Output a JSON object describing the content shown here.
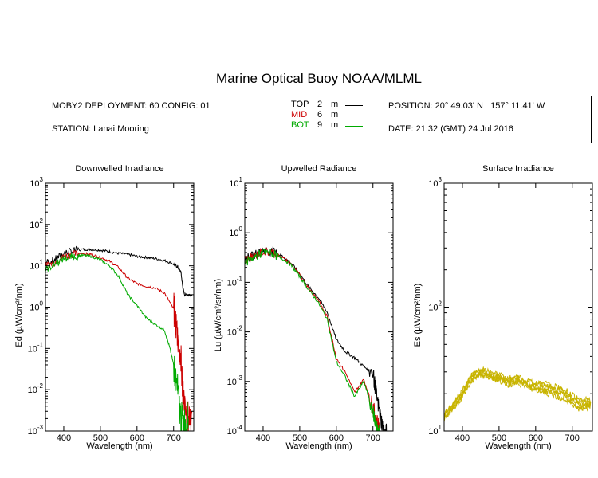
{
  "title": "Marine Optical Buoy NOAA/MLML",
  "header": {
    "deployment": "MOBY2 DEPLOYMENT: 60 CONFIG: 01",
    "station": "STATION: Lanai Mooring",
    "position": "POSITION: 20° 49.03' N   157° 11.41' W",
    "date": "DATE: 21:32 (GMT) 24 Jul 2016",
    "legend": [
      {
        "label": "TOP",
        "depth": "2",
        "unit": "m",
        "color": "#000000"
      },
      {
        "label": "MID",
        "depth": "6",
        "unit": "m",
        "color": "#cc0000"
      },
      {
        "label": "BOT",
        "depth": "9",
        "unit": "m",
        "color": "#00aa00"
      }
    ]
  },
  "chart_data": [
    {
      "type": "line",
      "title": "Downwelled Irradiance",
      "xlabel": "Wavelength (nm)",
      "ylabel": "Ed  (µW/cm²/nm)",
      "xlim": [
        350,
        755
      ],
      "ylim": [
        0.001,
        1000
      ],
      "yscale": "log",
      "xticks": [
        "400",
        "500",
        "600",
        "700"
      ],
      "yticks": [
        {
          "base": "10",
          "exp": "3"
        },
        {
          "base": "10",
          "exp": "2"
        },
        {
          "base": "10",
          "exp": "1"
        },
        {
          "base": "10",
          "exp": "0"
        },
        {
          "base": "10",
          "exp": "-1"
        },
        {
          "base": "10",
          "exp": "-2"
        },
        {
          "base": "10",
          "exp": "-3"
        }
      ],
      "series": [
        {
          "name": "TOP",
          "color": "#000000",
          "x": [
            350,
            375,
            400,
            425,
            450,
            475,
            500,
            525,
            550,
            575,
            600,
            625,
            650,
            675,
            700,
            710,
            720,
            725,
            730,
            740,
            750
          ],
          "y": [
            12,
            14,
            20,
            23,
            25,
            25,
            24,
            22,
            20,
            19,
            17,
            16,
            15,
            13.5,
            11,
            9.5,
            7,
            3,
            2,
            2,
            2
          ]
        },
        {
          "name": "MID",
          "color": "#cc0000",
          "x": [
            350,
            375,
            400,
            425,
            450,
            475,
            500,
            525,
            550,
            575,
            600,
            625,
            650,
            675,
            700,
            710,
            720,
            725,
            730,
            740,
            750
          ],
          "y": [
            10,
            12,
            17,
            19,
            20,
            19,
            16,
            13,
            9,
            5,
            3.7,
            3.2,
            2.9,
            2.2,
            0.9,
            0.25,
            0.05,
            0.01,
            0.003,
            0.002,
            0.003
          ]
        },
        {
          "name": "BOT",
          "color": "#00aa00",
          "x": [
            350,
            375,
            400,
            425,
            450,
            475,
            500,
            525,
            550,
            575,
            600,
            625,
            650,
            675,
            690,
            700,
            710,
            720,
            730,
            740
          ],
          "y": [
            8,
            11,
            15,
            17,
            18,
            17,
            14,
            10,
            5.5,
            2,
            1.1,
            0.55,
            0.38,
            0.28,
            0.1,
            0.04,
            0.01,
            0.002,
            0.0015,
            0.002
          ]
        }
      ]
    },
    {
      "type": "line",
      "title": "Upwelled Radiance",
      "xlabel": "Wavelength (nm)",
      "ylabel": "Lu  (µW/cm²/sr/nm)",
      "xlim": [
        350,
        755
      ],
      "ylim": [
        0.0001,
        10
      ],
      "yscale": "log",
      "xticks": [
        "400",
        "500",
        "600",
        "700"
      ],
      "yticks": [
        {
          "base": "10",
          "exp": "1"
        },
        {
          "base": "10",
          "exp": "0"
        },
        {
          "base": "10",
          "exp": "-1"
        },
        {
          "base": "10",
          "exp": "-2"
        },
        {
          "base": "10",
          "exp": "-3"
        },
        {
          "base": "10",
          "exp": "-4"
        }
      ],
      "series": [
        {
          "name": "TOP",
          "color": "#000000",
          "x": [
            350,
            375,
            400,
            425,
            450,
            475,
            500,
            525,
            550,
            575,
            600,
            625,
            650,
            675,
            700,
            710,
            720,
            730,
            740
          ],
          "y": [
            0.3,
            0.35,
            0.45,
            0.42,
            0.35,
            0.25,
            0.15,
            0.08,
            0.05,
            0.025,
            0.007,
            0.004,
            0.003,
            0.002,
            0.0015,
            0.0005,
            0.0002,
            0.0001,
            0.0001
          ]
        },
        {
          "name": "MID",
          "color": "#cc0000",
          "x": [
            350,
            375,
            400,
            425,
            450,
            475,
            500,
            525,
            550,
            575,
            600,
            625,
            650,
            675,
            700,
            710,
            720
          ],
          "y": [
            0.28,
            0.33,
            0.42,
            0.4,
            0.33,
            0.24,
            0.14,
            0.075,
            0.045,
            0.02,
            0.003,
            0.0015,
            0.0006,
            0.0011,
            0.0003,
            0.00015,
            0.0001
          ]
        },
        {
          "name": "BOT",
          "color": "#00aa00",
          "x": [
            350,
            375,
            400,
            425,
            450,
            475,
            500,
            525,
            550,
            575,
            600,
            625,
            650,
            675,
            700,
            710,
            720
          ],
          "y": [
            0.25,
            0.32,
            0.4,
            0.38,
            0.31,
            0.23,
            0.13,
            0.07,
            0.04,
            0.018,
            0.0025,
            0.0012,
            0.0005,
            0.001,
            0.00025,
            0.00012,
            0.0001
          ]
        }
      ]
    },
    {
      "type": "line",
      "title": "Surface Irradiance",
      "xlabel": "Wavelength (nm)",
      "ylabel": "Es  (µW/cm²/nm)",
      "xlim": [
        350,
        755
      ],
      "ylim": [
        10,
        1000
      ],
      "yscale": "log",
      "xticks": [
        "400",
        "500",
        "600",
        "700"
      ],
      "yticks": [
        {
          "base": "10",
          "exp": "3"
        },
        {
          "base": "10",
          "exp": "2"
        },
        {
          "base": "10",
          "exp": "1"
        }
      ],
      "series": [
        {
          "name": "Es",
          "color": "#c8b400",
          "x": [
            350,
            375,
            400,
            425,
            450,
            475,
            500,
            525,
            550,
            575,
            600,
            625,
            650,
            675,
            700,
            725,
            750
          ],
          "y": [
            13,
            16,
            20,
            27,
            30,
            28,
            27,
            25,
            26,
            24,
            23,
            22,
            21,
            20,
            18,
            16,
            17
          ]
        }
      ]
    }
  ]
}
